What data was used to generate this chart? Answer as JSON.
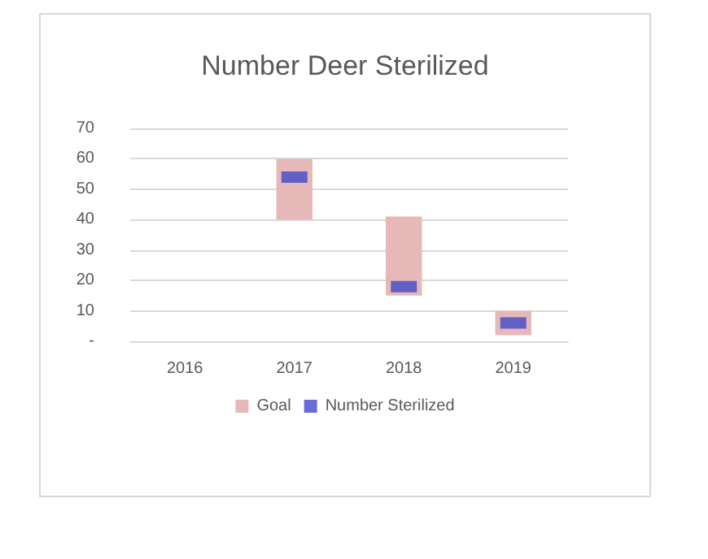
{
  "chart_data": {
    "type": "bar",
    "title": "Number Deer Sterilized",
    "categories": [
      "2016",
      "2017",
      "2018",
      "2019"
    ],
    "series": [
      {
        "name": "Goal",
        "type": "bar",
        "color": "#e6b8b7",
        "base": [
          null,
          40,
          15,
          2
        ],
        "values": [
          null,
          20,
          26,
          8
        ]
      },
      {
        "name": "Number Sterilized",
        "type": "scatter",
        "color": "#4149c9",
        "values": [
          null,
          54,
          18,
          6
        ]
      }
    ],
    "ylim": [
      0,
      70
    ],
    "yticks": [
      {
        "value": 0,
        "label": "-"
      },
      10,
      20,
      30,
      40,
      50,
      60,
      70
    ],
    "grid": "y",
    "legend": "bottom"
  }
}
